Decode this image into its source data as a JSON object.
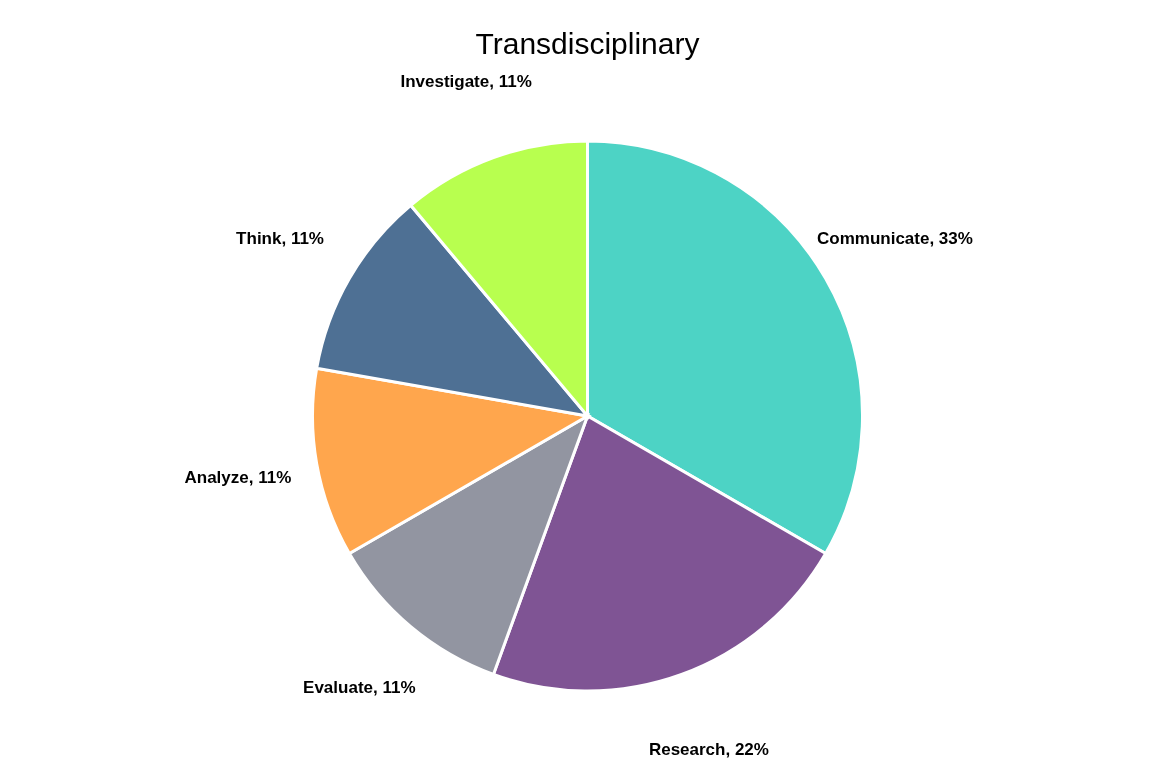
{
  "chart_data": {
    "type": "pie",
    "title": "Transdisciplinary",
    "categories": [
      "Communicate",
      "Research",
      "Evaluate",
      "Analyze",
      "Think",
      "Investigate"
    ],
    "values": [
      33,
      22,
      11,
      11,
      11,
      11
    ],
    "value_labels": [
      "33%",
      "22%",
      "11%",
      "11%",
      "11%",
      "11%"
    ],
    "colors": [
      "#4dd3c5",
      "#7f5494",
      "#9295a1",
      "#ffa64d",
      "#4e7094",
      "#b8ff4f"
    ],
    "legend": false
  }
}
